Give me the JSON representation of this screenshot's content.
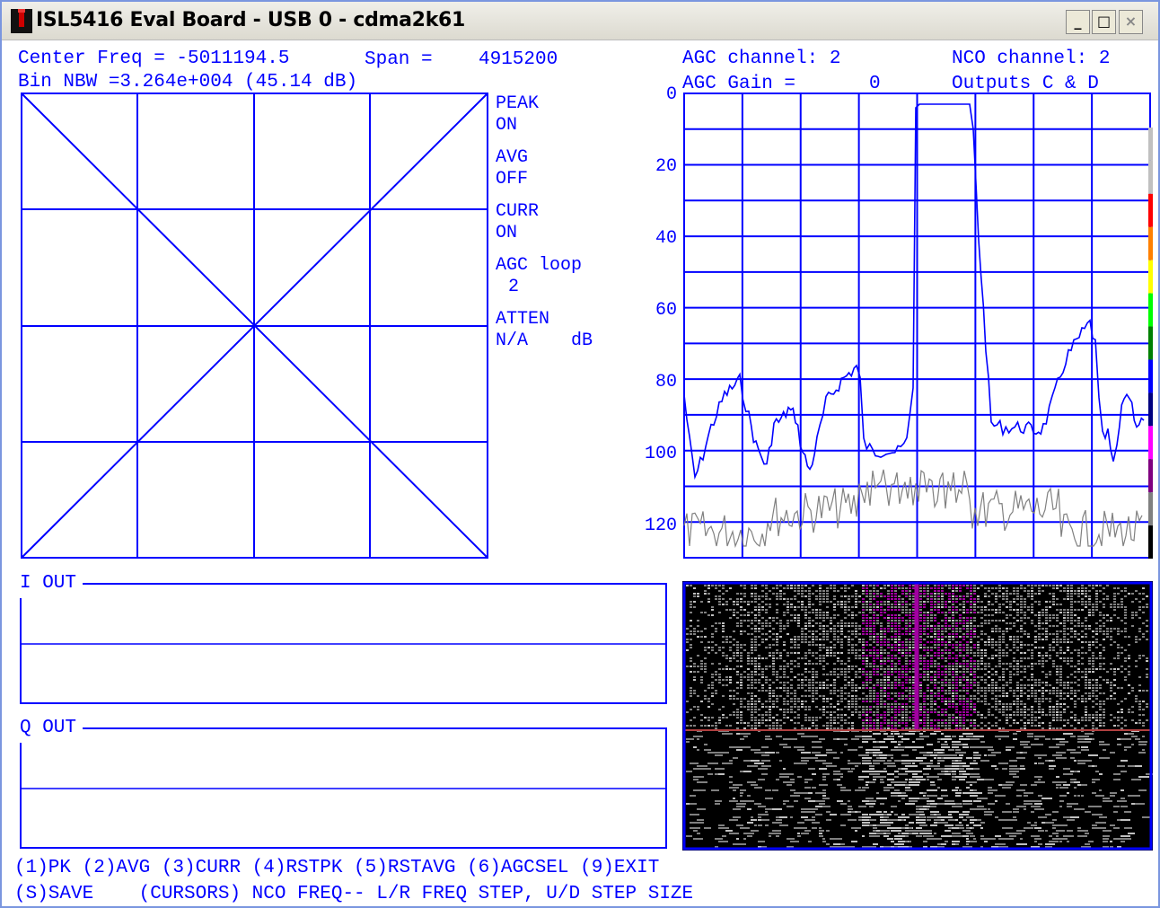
{
  "window": {
    "title": "ISL5416 Eval Board - USB 0 - cdma2k61",
    "controls": {
      "minimize": "_",
      "maximize": "□",
      "close": "×"
    }
  },
  "header": {
    "center_freq_label": "Center Freq = -5011194.5",
    "span_label": "Span =",
    "span_value": "4915200",
    "bin_nbw": "Bin NBW =3.264e+004 (45.14 dB)",
    "agc_channel": "AGC channel: 2",
    "nco_channel": "NCO channel: 2",
    "agc_gain_label": "AGC Gain =",
    "agc_gain_value": "0",
    "outputs": "Outputs C & D"
  },
  "status_panel": {
    "peak_label": "PEAK",
    "peak_value": "ON",
    "avg_label": "AVG",
    "avg_value": "OFF",
    "curr_label": "CURR",
    "curr_value": "ON",
    "agc_loop_label": "AGC loop",
    "agc_loop_value": "2",
    "atten_label": "ATTEN",
    "atten_value": "N/A",
    "atten_unit": "dB"
  },
  "spectrum": {
    "y_ticks": [
      "0",
      "20",
      "40",
      "60",
      "80",
      "100",
      "120"
    ],
    "color_bar": [
      "#c0c0c0",
      "#c0c0c0",
      "#ff0000",
      "#ff8000",
      "#ffff00",
      "#00ff00",
      "#008000",
      "#0000ff",
      "#000080",
      "#ff00ff",
      "#800080",
      "#808080",
      "#000000"
    ]
  },
  "scope": {
    "i_label": "I OUT",
    "q_label": "Q OUT"
  },
  "footer": {
    "line1": "(1)PK (2)AVG (3)CURR (4)RSTPK (5)RSTAVG (6)AGCSEL (9)EXIT",
    "line2": "(S)SAVE    (CURSORS) NCO FREQ-- L/R FREQ STEP, U/D STEP SIZE"
  },
  "colors": {
    "trace": "#0000ff",
    "noise": "#808080",
    "waterfall_bg": "#000000",
    "waterfall_signal": "#a000a0",
    "marker": "#b00000"
  }
}
